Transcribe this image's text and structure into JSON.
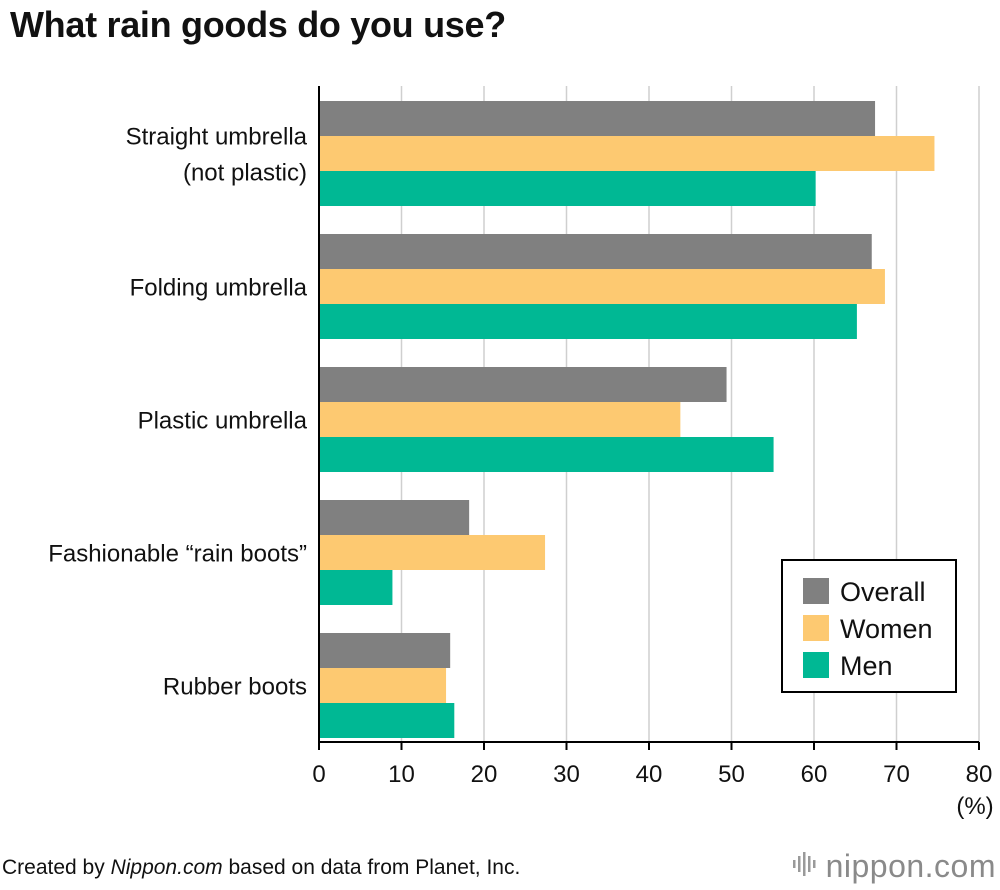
{
  "title": "What rain goods do you use?",
  "footer": {
    "prefix": "Created by ",
    "source_em": "Nippon.com",
    "suffix": " based on data from Planet, Inc."
  },
  "logo": {
    "name": "nippon",
    "dot": ".",
    "tld": "com"
  },
  "colors": {
    "overall": "#808080",
    "women": "#fdc971",
    "men": "#00b894",
    "grid": "#cfcfcf",
    "axis": "#000000"
  },
  "chart_data": {
    "type": "bar",
    "orientation": "horizontal",
    "categories": [
      [
        "Straight umbrella",
        "(not plastic)"
      ],
      [
        "Folding umbrella"
      ],
      [
        "Plastic umbrella"
      ],
      [
        "Fashionable “rain boots”"
      ],
      [
        "Rubber boots"
      ]
    ],
    "series": [
      {
        "name": "Overall",
        "color": "#808080",
        "values": [
          67.4,
          67.0,
          49.4,
          18.2,
          15.9
        ]
      },
      {
        "name": "Women",
        "color": "#fdc971",
        "values": [
          74.6,
          68.6,
          43.8,
          27.4,
          15.4
        ]
      },
      {
        "name": "Men",
        "color": "#00b894",
        "values": [
          60.2,
          65.2,
          55.1,
          8.9,
          16.4
        ]
      }
    ],
    "xlim": [
      0,
      80
    ],
    "xticks": [
      0,
      10,
      20,
      30,
      40,
      50,
      60,
      70,
      80
    ],
    "xunit": "(%)",
    "grid": true,
    "legend_position": "bottom-right"
  }
}
